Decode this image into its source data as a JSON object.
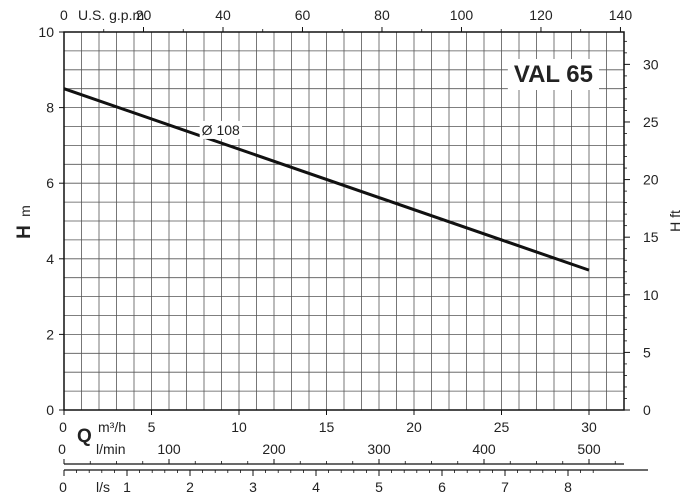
{
  "chart_data": {
    "type": "line",
    "model_label": "VAL 65",
    "series": [
      {
        "name": "Ø 108",
        "x": [
          0,
          30
        ],
        "y": [
          8.5,
          3.7
        ]
      }
    ],
    "left_axis": {
      "symbol": "H",
      "unit": "m",
      "range": [
        0,
        10
      ],
      "ticks": [
        0,
        2,
        4,
        6,
        8,
        10
      ]
    },
    "right_axis": {
      "label": "H ft",
      "range_ft": [
        0,
        32.81
      ],
      "ticks": [
        0,
        5,
        10,
        15,
        20,
        25,
        30
      ]
    },
    "top_axis": {
      "label": "U.S. g.p.m.",
      "ticks": [
        0,
        20,
        40,
        60,
        80,
        100,
        120,
        140
      ]
    },
    "x_axis_m3h": {
      "symbol": "Q",
      "unit": "m³/h",
      "range": [
        0,
        32
      ],
      "ticks": [
        0,
        5,
        10,
        15,
        20,
        25,
        30
      ]
    },
    "x_axis_lmin": {
      "unit": "l/min",
      "ticks": [
        0,
        100,
        200,
        300,
        400,
        500
      ]
    },
    "x_axis_ls": {
      "unit": "l/s",
      "ticks": [
        0,
        1,
        2,
        3,
        4,
        5,
        6,
        7,
        8
      ]
    },
    "grid": true
  }
}
